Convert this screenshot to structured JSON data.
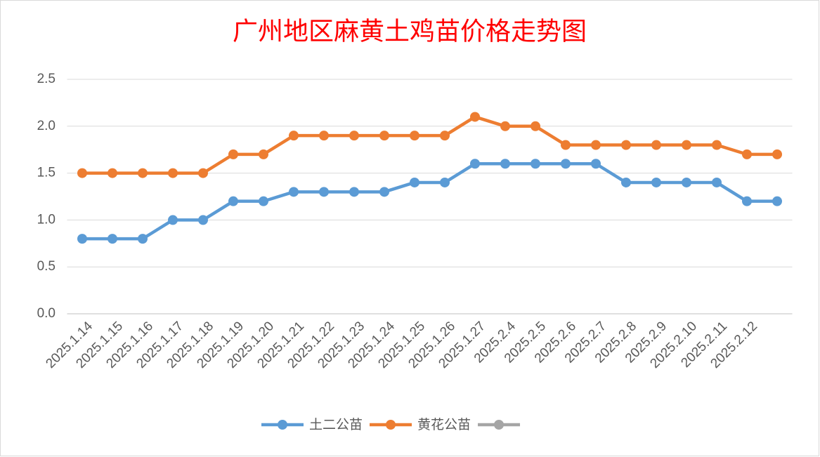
{
  "chart_data": {
    "type": "line",
    "title": "广州地区麻黄土鸡苗价格走势图",
    "categories": [
      "2025.1.14",
      "2025.1.15",
      "2025.1.16",
      "2025.1.17",
      "2025.1.18",
      "2025.1.19",
      "2025.1.20",
      "2025.1.21",
      "2025.1.22",
      "2025.1.23",
      "2025.1.24",
      "2025.1.25",
      "2025.1.26",
      "2025.1.27",
      "2025.2.4",
      "2025.2.5",
      "2025.2.6",
      "2025.2.7",
      "2025.2.8",
      "2025.2.9",
      "2025.2.10",
      "2025.2.11",
      "2025.2.12",
      null
    ],
    "series": [
      {
        "name": "土二公苗",
        "color": "#5b9bd5",
        "values": [
          0.8,
          0.8,
          0.8,
          1.0,
          1.0,
          1.2,
          1.2,
          1.3,
          1.3,
          1.3,
          1.3,
          1.4,
          1.4,
          1.6,
          1.6,
          1.6,
          1.6,
          1.6,
          1.4,
          1.4,
          1.4,
          1.4,
          1.2,
          1.2
        ]
      },
      {
        "name": "黄花公苗",
        "color": "#ed7d31",
        "values": [
          1.5,
          1.5,
          1.5,
          1.5,
          1.5,
          1.7,
          1.7,
          1.9,
          1.9,
          1.9,
          1.9,
          1.9,
          1.9,
          2.1,
          2.0,
          2.0,
          1.8,
          1.8,
          1.8,
          1.8,
          1.8,
          1.8,
          1.7,
          1.7
        ]
      },
      {
        "color": "#a5a5a5",
        "values": [
          null,
          null,
          null,
          null,
          null,
          null,
          null,
          null,
          null,
          null,
          null,
          null,
          null,
          null,
          null,
          null,
          null,
          null,
          null,
          null,
          null,
          null,
          null,
          null
        ]
      }
    ],
    "ylim": [
      0,
      2.5
    ],
    "yticks": [
      {
        "value": 0,
        "label": "0.0"
      },
      0.5,
      {
        "value": 1,
        "label": "1.0"
      },
      1.5,
      {
        "value": 2,
        "label": "2.0"
      },
      2.5
    ],
    "grid": true,
    "legend": "bottom"
  }
}
